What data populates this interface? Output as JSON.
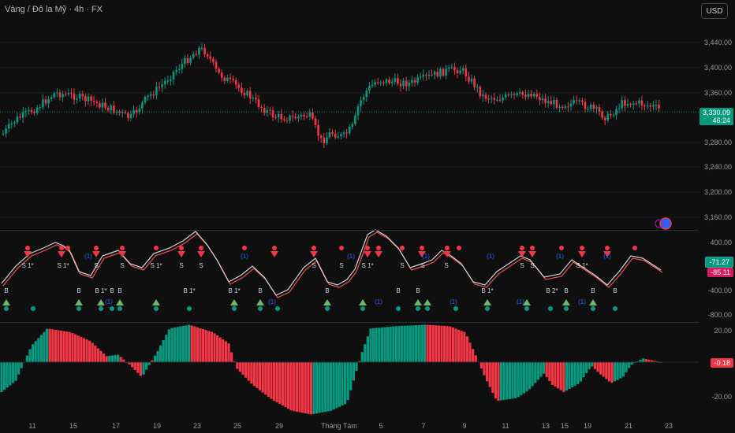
{
  "header": {
    "symbol_title": "Vàng / Đô la Mỹ · 4h · FX",
    "currency_button": "USD"
  },
  "price_axis": {
    "labels": [
      "3,440.00",
      "3,400.00",
      "3,360.00",
      "3,280.00",
      "3,240.00",
      "3,200.00",
      "3,160.00"
    ],
    "current_price": "3,330.09",
    "countdown": "46:24"
  },
  "oscillator_axis": {
    "labels": [
      "400.00",
      "-400.00",
      "-800.00"
    ],
    "value_green": "-71.27",
    "value_red": "-85.11"
  },
  "histogram_axis": {
    "labels": [
      "20.00",
      "-20.00"
    ],
    "value": "-0.18"
  },
  "time_axis": {
    "labels": [
      "11",
      "15",
      "17",
      "19",
      "23",
      "25",
      "29",
      "Tháng Tám",
      "5",
      "7",
      "9",
      "11",
      "13",
      "15",
      "19",
      "21",
      "23"
    ]
  },
  "colors": {
    "up": "#089981",
    "down": "#f23645",
    "background": "#0f0f0f",
    "signal_blue": "#2962ff"
  },
  "signals": {
    "sell_labels": [
      "S 1*",
      "S 1*",
      "S",
      "S",
      "S 1*",
      "S",
      "S",
      "S",
      "S",
      "S 1*",
      "S",
      "S",
      "S",
      "S",
      "S",
      "S 1*"
    ],
    "buy_labels": [
      "B",
      "B",
      "B 1*",
      "B",
      "B",
      "B 1*",
      "B 1*",
      "B",
      "B",
      "B",
      "B",
      "B 1*",
      "B 2*",
      "B",
      "B",
      "B"
    ],
    "blue_tag": "(1)"
  }
}
